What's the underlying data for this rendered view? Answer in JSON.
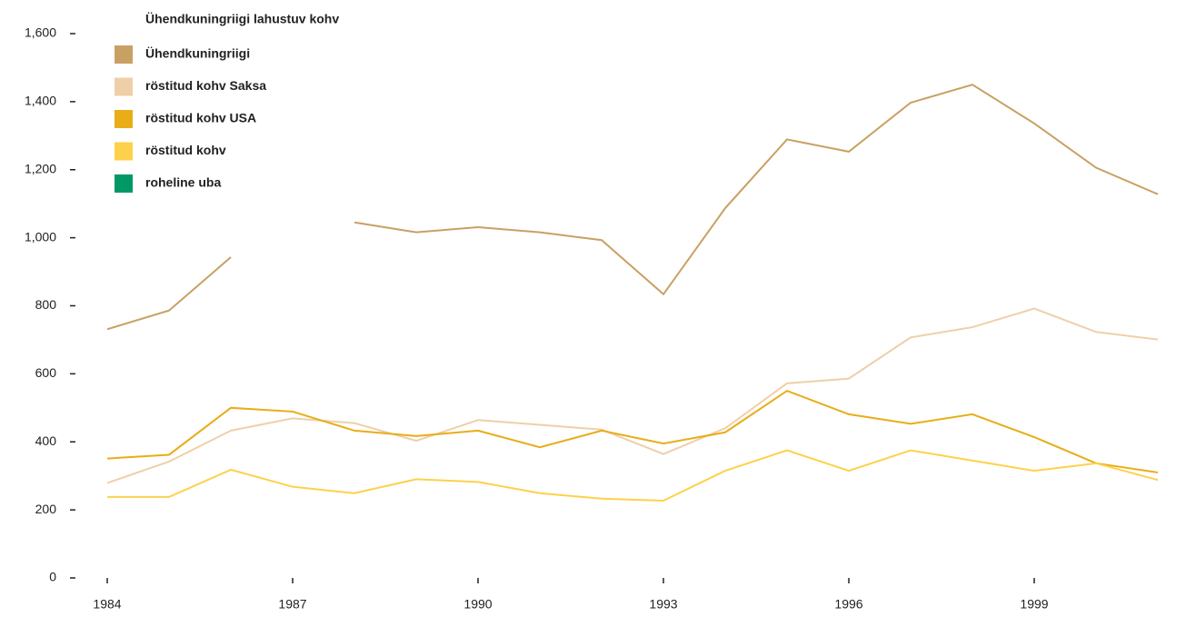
{
  "chart_data": {
    "type": "line",
    "legend_title": "Ühendkuningriigi lahustuv kohv",
    "legend": "top-left",
    "x": [
      1984,
      1985,
      1986,
      1987,
      1988,
      1989,
      1990,
      1991,
      1992,
      1993,
      1994,
      1995,
      1996,
      1997,
      1998,
      1999,
      2000,
      2001
    ],
    "xlim": [
      1984,
      2001
    ],
    "xticks": [
      1984,
      1987,
      1990,
      1993,
      1996,
      1999
    ],
    "ylim": [
      0,
      1600
    ],
    "yticks": [
      0,
      200,
      400,
      600,
      800,
      {
        "value": 1000,
        "label": "1,000"
      },
      {
        "value": 1200,
        "label": "1,200"
      },
      {
        "value": 1400,
        "label": "1,400"
      },
      {
        "value": 1600,
        "label": "1,600"
      }
    ],
    "series": [
      {
        "name": "Ühendkuningriigi",
        "color": "#c9a063",
        "values": [
          731,
          786,
          943,
          null,
          1045,
          1016,
          1031,
          1016,
          993,
          834,
          1087,
          1289,
          1253,
          1397,
          1450,
          1336,
          1206,
          1128
        ]
      },
      {
        "name": "röstitud kohv Saksa",
        "color": "#efcfa8",
        "values": [
          279,
          342,
          433,
          469,
          455,
          403,
          464,
          450,
          436,
          364,
          440,
          572,
          586,
          707,
          737,
          792,
          723,
          701
        ]
      },
      {
        "name": "röstitud kohv USA",
        "color": "#e8ad17",
        "values": [
          351,
          362,
          500,
          489,
          433,
          417,
          433,
          384,
          433,
          395,
          428,
          550,
          481,
          453,
          481,
          414,
          337,
          310
        ]
      },
      {
        "name": "röstitud kohv",
        "color": "#fdd14b",
        "values": [
          238,
          238,
          318,
          268,
          249,
          290,
          282,
          249,
          233,
          227,
          315,
          375,
          315,
          375,
          345,
          315,
          337,
          288
        ]
      },
      {
        "name": "roheline uba",
        "color": "#009966",
        "values": [
          null,
          null,
          null,
          null,
          null,
          null,
          null,
          null,
          null,
          null,
          null,
          null,
          null,
          null,
          null,
          null,
          null,
          null
        ]
      }
    ]
  }
}
